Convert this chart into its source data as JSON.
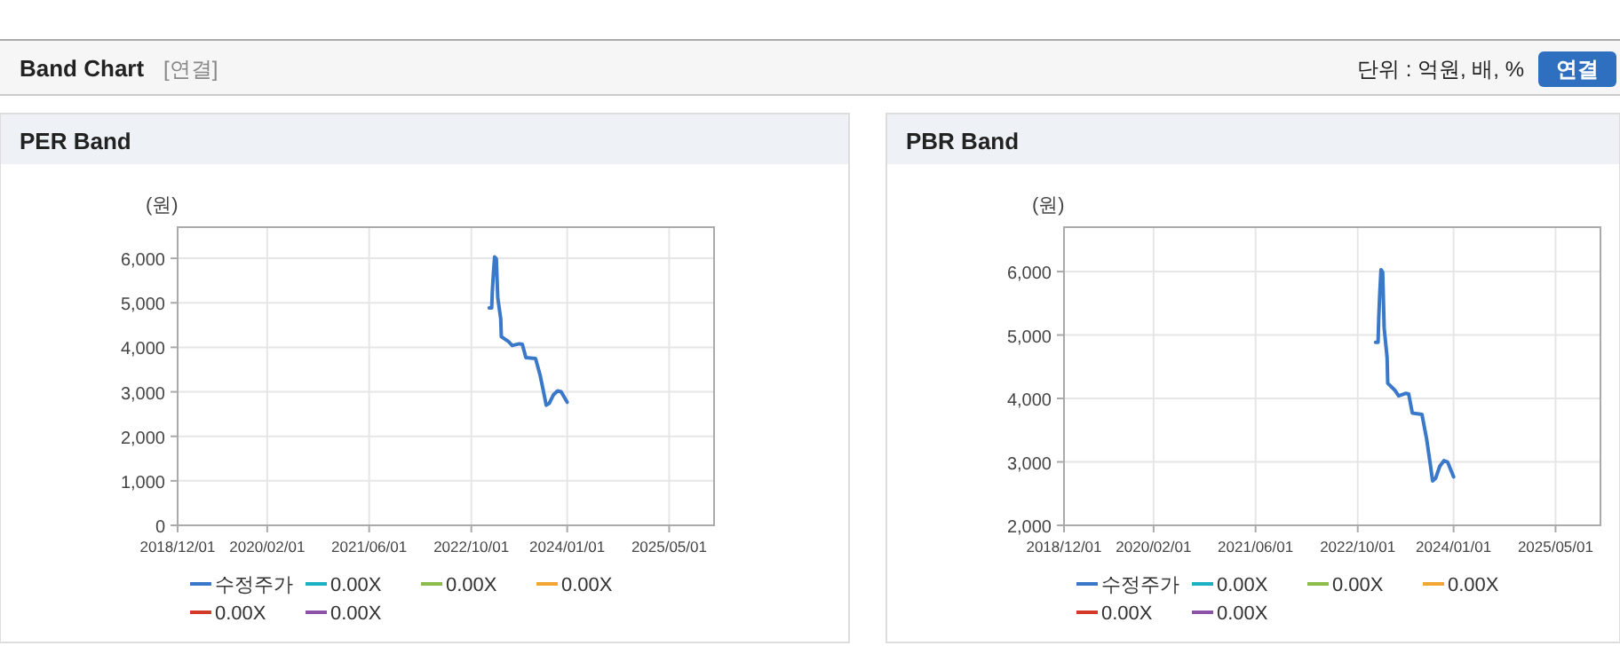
{
  "chart_data": [
    {
      "type": "other",
      "title": "Band Chart",
      "subtitle": "[연결]",
      "annotations": [
        "단위 : 억원, 배, %",
        "연결"
      ]
    },
    {
      "type": "line",
      "title": "PER Band",
      "ylabel": "(원)",
      "legend": "bottom",
      "grid": true,
      "x": [
        "2022-12-25",
        "2023-01-06",
        "2023-01-09",
        "2023-01-14",
        "2023-01-20",
        "2023-01-28",
        "2023-02-04",
        "2023-02-18",
        "2023-02-21",
        "2023-03-27",
        "2023-04-14",
        "2023-05-17",
        "2023-06-01",
        "2023-06-18",
        "2023-08-03",
        "2023-08-25",
        "2023-09-09",
        "2023-09-23",
        "2023-10-07",
        "2023-10-27",
        "2023-11-16",
        "2023-12-03",
        "2024-01-01"
      ],
      "xlim": [
        "2018-12-01",
        "2025-12-01"
      ],
      "xticks": [
        {
          "value": "2018-12-01",
          "label": "2018/12/01"
        },
        {
          "value": "2020-02-01",
          "label": "2020/02/01"
        },
        {
          "value": "2021-06-01",
          "label": "2021/06/01"
        },
        {
          "value": "2022-10-01",
          "label": "2022/10/01"
        },
        {
          "value": "2024-01-01",
          "label": "2024/01/01"
        },
        {
          "value": "2025-05-01",
          "label": "2025/05/01"
        }
      ],
      "ylim": [
        0,
        6700
      ],
      "yticks": [
        0,
        {
          "value": 1000,
          "label": "1,000"
        },
        {
          "value": 2000,
          "label": "2,000"
        },
        {
          "value": 3000,
          "label": "3,000"
        },
        {
          "value": 4000,
          "label": "4,000"
        },
        {
          "value": 5000,
          "label": "5,000"
        },
        {
          "value": 6000,
          "label": "6,000"
        }
      ],
      "series": [
        {
          "name": "수정주가",
          "color": "#3a78c9",
          "values": [
            4885,
            4885,
            5250,
            5650,
            6030,
            5990,
            5110,
            4640,
            4240,
            4130,
            4040,
            4080,
            4070,
            3770,
            3750,
            3370,
            3030,
            2700,
            2740,
            2930,
            3020,
            3000,
            2765
          ]
        },
        {
          "name": "0.00X",
          "color": "#1cb2c4",
          "values": [
            null,
            null,
            null,
            null,
            null,
            null,
            null,
            null,
            null,
            null,
            null,
            null,
            null,
            null,
            null,
            null,
            null,
            null,
            null,
            null,
            null,
            null,
            null
          ]
        },
        {
          "name": "0.00X",
          "color": "#8cbd4a",
          "values": [
            null,
            null,
            null,
            null,
            null,
            null,
            null,
            null,
            null,
            null,
            null,
            null,
            null,
            null,
            null,
            null,
            null,
            null,
            null,
            null,
            null,
            null,
            null
          ]
        },
        {
          "name": "0.00X",
          "color": "#f2a530",
          "values": [
            null,
            null,
            null,
            null,
            null,
            null,
            null,
            null,
            null,
            null,
            null,
            null,
            null,
            null,
            null,
            null,
            null,
            null,
            null,
            null,
            null,
            null,
            null
          ]
        },
        {
          "name": "0.00X",
          "color": "#d43a2a",
          "values": [
            null,
            null,
            null,
            null,
            null,
            null,
            null,
            null,
            null,
            null,
            null,
            null,
            null,
            null,
            null,
            null,
            null,
            null,
            null,
            null,
            null,
            null,
            null
          ]
        },
        {
          "name": "0.00X",
          "color": "#8b52a8",
          "values": [
            null,
            null,
            null,
            null,
            null,
            null,
            null,
            null,
            null,
            null,
            null,
            null,
            null,
            null,
            null,
            null,
            null,
            null,
            null,
            null,
            null,
            null,
            null
          ]
        }
      ]
    },
    {
      "type": "line",
      "title": "PBR Band",
      "ylabel": "(원)",
      "legend": "bottom",
      "grid": true,
      "x": [
        "2022-12-25",
        "2023-01-06",
        "2023-01-09",
        "2023-01-14",
        "2023-01-20",
        "2023-01-28",
        "2023-02-04",
        "2023-02-18",
        "2023-02-21",
        "2023-03-27",
        "2023-04-14",
        "2023-05-17",
        "2023-06-01",
        "2023-06-18",
        "2023-08-03",
        "2023-08-25",
        "2023-09-09",
        "2023-09-23",
        "2023-10-07",
        "2023-10-27",
        "2023-11-16",
        "2023-12-03",
        "2024-01-01"
      ],
      "xlim": [
        "2018-12-01",
        "2025-12-01"
      ],
      "xticks": [
        {
          "value": "2018-12-01",
          "label": "2018/12/01"
        },
        {
          "value": "2020-02-01",
          "label": "2020/02/01"
        },
        {
          "value": "2021-06-01",
          "label": "2021/06/01"
        },
        {
          "value": "2022-10-01",
          "label": "2022/10/01"
        },
        {
          "value": "2024-01-01",
          "label": "2024/01/01"
        },
        {
          "value": "2025-05-01",
          "label": "2025/05/01"
        }
      ],
      "ylim": [
        2000,
        6700
      ],
      "yticks": [
        {
          "value": 2000,
          "label": "2,000"
        },
        {
          "value": 3000,
          "label": "3,000"
        },
        {
          "value": 4000,
          "label": "4,000"
        },
        {
          "value": 5000,
          "label": "5,000"
        },
        {
          "value": 6000,
          "label": "6,000"
        }
      ],
      "series": [
        {
          "name": "수정주가",
          "color": "#3a78c9",
          "values": [
            4885,
            4885,
            5250,
            5650,
            6030,
            5990,
            5110,
            4640,
            4240,
            4130,
            4040,
            4080,
            4070,
            3770,
            3750,
            3370,
            3030,
            2700,
            2740,
            2930,
            3020,
            3000,
            2765
          ]
        },
        {
          "name": "0.00X",
          "color": "#1cb2c4",
          "values": [
            null,
            null,
            null,
            null,
            null,
            null,
            null,
            null,
            null,
            null,
            null,
            null,
            null,
            null,
            null,
            null,
            null,
            null,
            null,
            null,
            null,
            null,
            null
          ]
        },
        {
          "name": "0.00X",
          "color": "#8cbd4a",
          "values": [
            null,
            null,
            null,
            null,
            null,
            null,
            null,
            null,
            null,
            null,
            null,
            null,
            null,
            null,
            null,
            null,
            null,
            null,
            null,
            null,
            null,
            null,
            null
          ]
        },
        {
          "name": "0.00X",
          "color": "#f2a530",
          "values": [
            null,
            null,
            null,
            null,
            null,
            null,
            null,
            null,
            null,
            null,
            null,
            null,
            null,
            null,
            null,
            null,
            null,
            null,
            null,
            null,
            null,
            null,
            null
          ]
        },
        {
          "name": "0.00X",
          "color": "#d43a2a",
          "values": [
            null,
            null,
            null,
            null,
            null,
            null,
            null,
            null,
            null,
            null,
            null,
            null,
            null,
            null,
            null,
            null,
            null,
            null,
            null,
            null,
            null,
            null,
            null
          ]
        },
        {
          "name": "0.00X",
          "color": "#8b52a8",
          "values": [
            null,
            null,
            null,
            null,
            null,
            null,
            null,
            null,
            null,
            null,
            null,
            null,
            null,
            null,
            null,
            null,
            null,
            null,
            null,
            null,
            null,
            null,
            null
          ]
        }
      ]
    }
  ]
}
